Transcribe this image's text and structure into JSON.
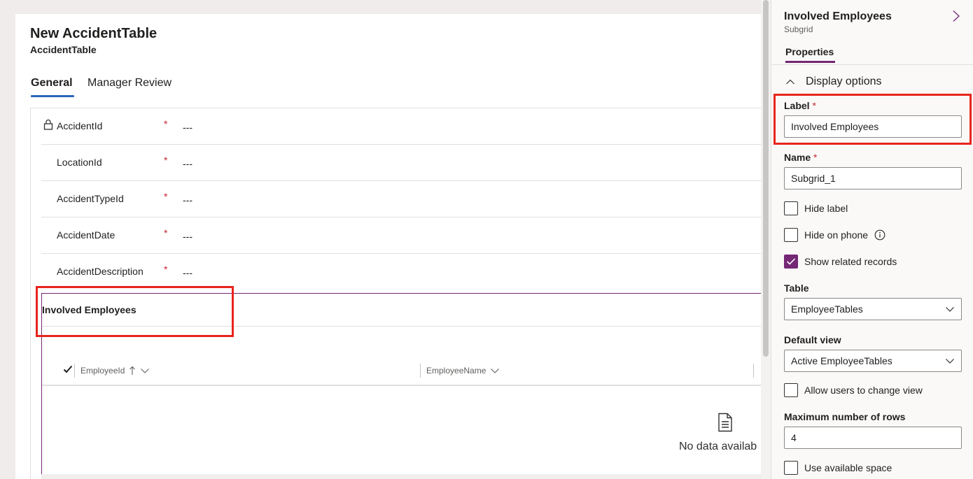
{
  "form": {
    "title": "New AccidentTable",
    "subtitle": "AccidentTable",
    "tabs": [
      "General",
      "Manager Review"
    ],
    "fields": [
      {
        "label": "AccidentId",
        "required": "*",
        "value": "---"
      },
      {
        "label": "LocationId",
        "required": "*",
        "value": "---"
      },
      {
        "label": "AccidentTypeId",
        "required": "*",
        "value": "---"
      },
      {
        "label": "AccidentDate",
        "required": "*",
        "value": "---"
      },
      {
        "label": "AccidentDescription",
        "required": "*",
        "value": "---"
      }
    ],
    "subgrid": {
      "title": "Involved Employees",
      "columns": [
        "EmployeeId",
        "EmployeeName"
      ],
      "empty_text": "No data availab"
    }
  },
  "panel": {
    "title": "Involved Employees",
    "subtitle": "Subgrid",
    "tab": "Properties",
    "section": "Display options",
    "label_field": {
      "label": "Label",
      "required": "*",
      "value": "Involved Employees"
    },
    "name_field": {
      "label": "Name",
      "required": "*",
      "value": "Subgrid_1"
    },
    "checks": {
      "hide_label": "Hide label",
      "hide_on_phone": "Hide on phone",
      "show_related": "Show related records",
      "allow_change_view": "Allow users to change view",
      "use_space": "Use available space"
    },
    "table_field": {
      "label": "Table",
      "value": "EmployeeTables"
    },
    "default_view": {
      "label": "Default view",
      "value": "Active EmployeeTables"
    },
    "max_rows": {
      "label": "Maximum number of rows",
      "value": "4"
    }
  },
  "colors": {
    "accent_purple": "#742774",
    "tab_blue": "#2b66b8",
    "highlight_red": "#e8251d",
    "required_red": "#c4262e"
  }
}
